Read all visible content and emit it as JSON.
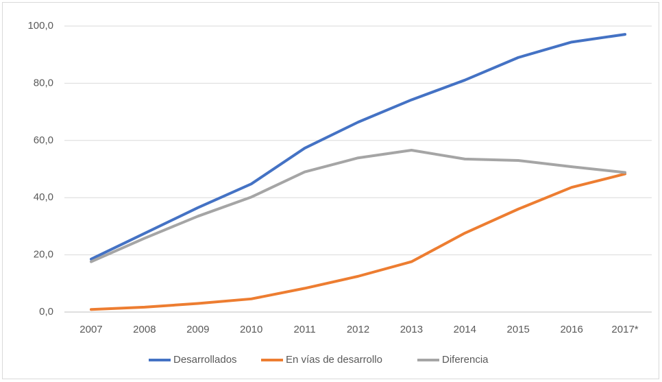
{
  "chart_data": {
    "type": "line",
    "categories": [
      "2007",
      "2008",
      "2009",
      "2010",
      "2011",
      "2012",
      "2013",
      "2014",
      "2015",
      "2016",
      "2017*"
    ],
    "series": [
      {
        "name": "Desarrollados",
        "color": "#4472c4",
        "values": [
          18.5,
          27.5,
          36.5,
          44.8,
          57.3,
          66.4,
          74.2,
          81.1,
          89.0,
          94.4,
          97.1
        ]
      },
      {
        "name": "En vías de desarrollo",
        "color": "#ed7d31",
        "values": [
          0.9,
          1.7,
          3.0,
          4.6,
          8.3,
          12.5,
          17.6,
          27.6,
          36.0,
          43.6,
          48.3
        ]
      },
      {
        "name": "Diferencia",
        "color": "#a5a5a5",
        "values": [
          17.6,
          25.8,
          33.5,
          40.2,
          49.0,
          53.9,
          56.6,
          53.5,
          53.0,
          50.8,
          48.8
        ]
      }
    ],
    "ylim": [
      0,
      100
    ],
    "yticks": [
      {
        "value": 0,
        "label": "0,0"
      },
      {
        "value": 20,
        "label": "20,0"
      },
      {
        "value": 40,
        "label": "40,0"
      },
      {
        "value": 60,
        "label": "60,0"
      },
      {
        "value": 80,
        "label": "80,0"
      },
      {
        "value": 100,
        "label": "100,0"
      }
    ],
    "grid": true,
    "legend": "bottom"
  }
}
